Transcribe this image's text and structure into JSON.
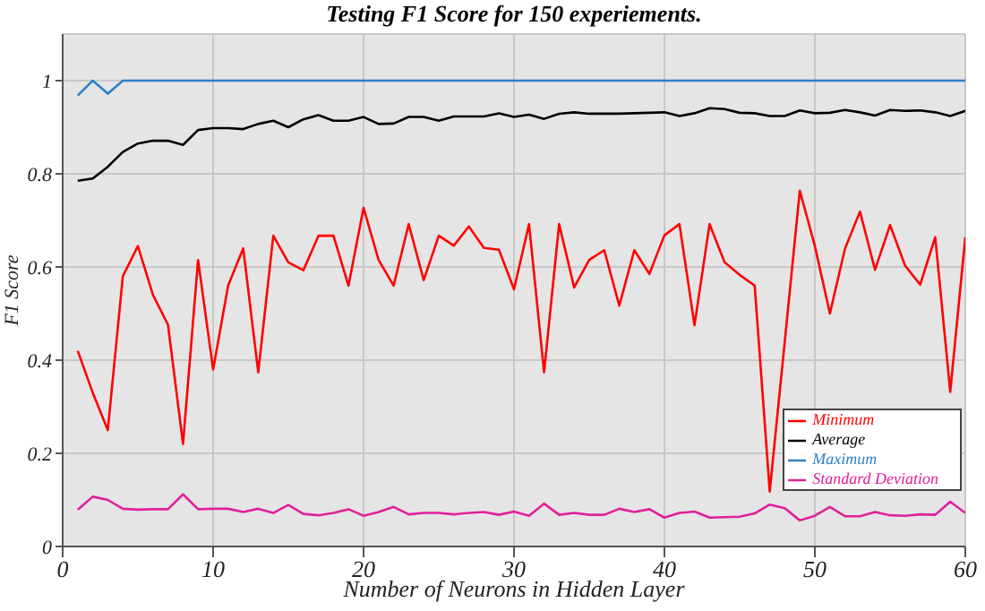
{
  "chart_data": {
    "type": "line",
    "title": "Testing F1 Score for 150 experiements.",
    "xlabel": "Number of Neurons in Hidden Layer",
    "ylabel": "F1 Score",
    "x": [
      1,
      2,
      3,
      4,
      5,
      6,
      7,
      8,
      9,
      10,
      11,
      12,
      13,
      14,
      15,
      16,
      17,
      18,
      19,
      20,
      21,
      22,
      23,
      24,
      25,
      26,
      27,
      28,
      29,
      30,
      31,
      32,
      33,
      34,
      35,
      36,
      37,
      38,
      39,
      40,
      41,
      42,
      43,
      44,
      45,
      46,
      47,
      48,
      49,
      50,
      51,
      52,
      53,
      54,
      55,
      56,
      57,
      58,
      59,
      60
    ],
    "series": [
      {
        "name": "Minimum",
        "color": "#ff0000",
        "values": [
          0.42,
          0.33,
          0.25,
          0.58,
          0.645,
          0.54,
          0.476,
          0.22,
          0.615,
          0.38,
          0.56,
          0.64,
          0.374,
          0.667,
          0.61,
          0.593,
          0.667,
          0.667,
          0.56,
          0.727,
          0.615,
          0.56,
          0.692,
          0.572,
          0.667,
          0.646,
          0.687,
          0.641,
          0.637,
          0.552,
          0.692,
          0.374,
          0.692,
          0.556,
          0.615,
          0.636,
          0.517,
          0.636,
          0.585,
          0.668,
          0.692,
          0.475,
          0.692,
          0.61,
          0.583,
          0.56,
          0.118,
          0.44,
          0.764,
          0.645,
          0.5,
          0.639,
          0.719,
          0.594,
          0.69,
          0.603,
          0.562,
          0.664,
          0.332,
          0.664
        ]
      },
      {
        "name": "Average",
        "color": "#000000",
        "values": [
          0.785,
          0.79,
          0.815,
          0.847,
          0.865,
          0.871,
          0.871,
          0.862,
          0.894,
          0.898,
          0.898,
          0.896,
          0.907,
          0.914,
          0.9,
          0.917,
          0.926,
          0.914,
          0.914,
          0.922,
          0.907,
          0.908,
          0.922,
          0.922,
          0.914,
          0.923,
          0.923,
          0.923,
          0.93,
          0.922,
          0.927,
          0.918,
          0.929,
          0.932,
          0.929,
          0.929,
          0.929,
          0.93,
          0.931,
          0.932,
          0.924,
          0.93,
          0.941,
          0.939,
          0.931,
          0.93,
          0.924,
          0.924,
          0.936,
          0.93,
          0.931,
          0.937,
          0.932,
          0.925,
          0.937,
          0.935,
          0.936,
          0.932,
          0.924,
          0.935
        ]
      },
      {
        "name": "Maximum",
        "color": "#2f7fc4",
        "values": [
          0.968,
          1,
          0.972,
          1,
          1,
          1,
          1,
          1,
          1,
          1,
          1,
          1,
          1,
          1,
          1,
          1,
          1,
          1,
          1,
          1,
          1,
          1,
          1,
          1,
          1,
          1,
          1,
          1,
          1,
          1,
          1,
          1,
          1,
          1,
          1,
          1,
          1,
          1,
          1,
          1,
          1,
          1,
          1,
          1,
          1,
          1,
          1,
          1,
          1,
          1,
          1,
          1,
          1,
          1,
          1,
          1,
          1,
          1,
          1,
          1
        ]
      },
      {
        "name": "Standard Deviation",
        "color": "#e0209a",
        "values": [
          0.079,
          0.107,
          0.1,
          0.081,
          0.079,
          0.08,
          0.08,
          0.112,
          0.08,
          0.081,
          0.081,
          0.074,
          0.081,
          0.072,
          0.089,
          0.07,
          0.067,
          0.072,
          0.08,
          0.066,
          0.074,
          0.085,
          0.069,
          0.072,
          0.072,
          0.069,
          0.072,
          0.074,
          0.068,
          0.075,
          0.066,
          0.092,
          0.068,
          0.072,
          0.068,
          0.068,
          0.081,
          0.074,
          0.08,
          0.062,
          0.072,
          0.075,
          0.062,
          0.063,
          0.064,
          0.071,
          0.09,
          0.082,
          0.056,
          0.066,
          0.085,
          0.065,
          0.065,
          0.074,
          0.067,
          0.066,
          0.069,
          0.068,
          0.096,
          0.072
        ]
      }
    ],
    "xlim": [
      0,
      60
    ],
    "xticks": [
      0,
      10,
      20,
      30,
      40,
      50,
      60
    ],
    "ylim": [
      0,
      1.1
    ],
    "yticks": [
      0,
      0.2,
      0.4,
      0.6,
      0.8,
      1
    ],
    "grid": true,
    "legend": "bottom right",
    "marker": "none",
    "line_style": "solid"
  }
}
